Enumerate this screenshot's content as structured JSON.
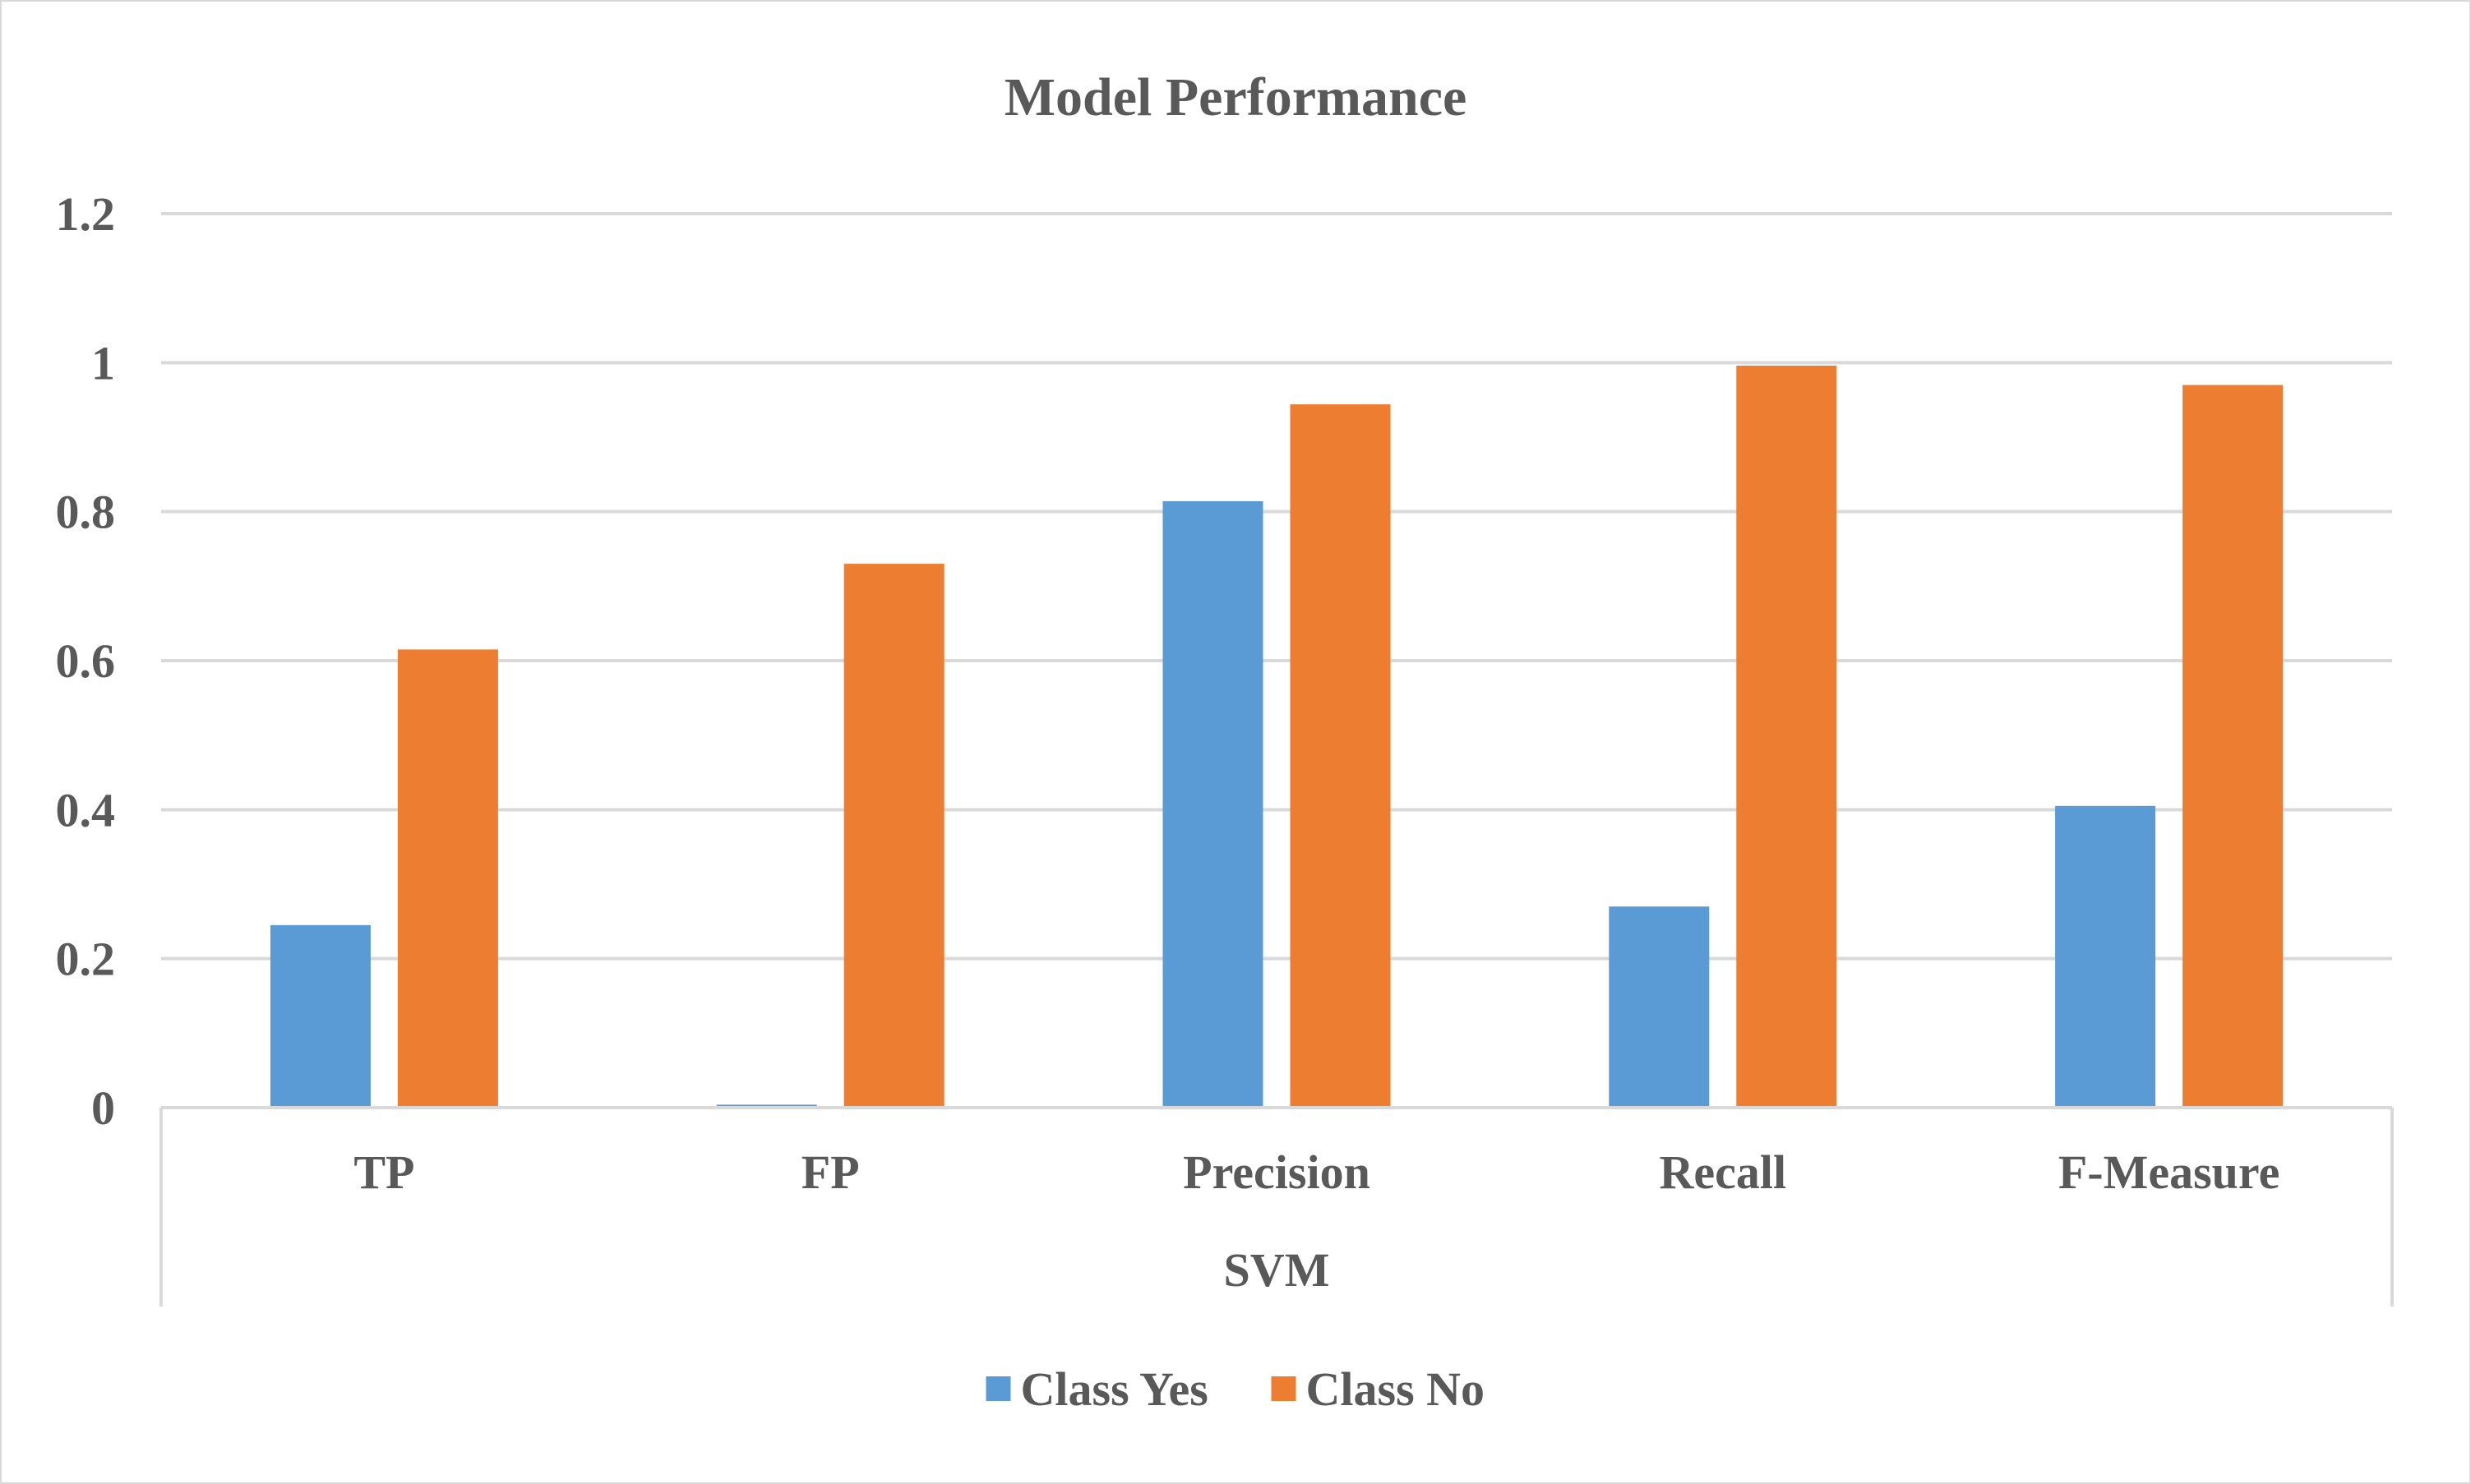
{
  "chart_data": {
    "type": "bar",
    "title": "Model Performance",
    "categories": [
      "TP",
      "FP",
      "Precision",
      "Recall",
      "F-Measure"
    ],
    "group_label": "SVM",
    "series": [
      {
        "name": "Class Yes",
        "color": "#5b9bd5",
        "values": [
          0.245,
          0.004,
          0.814,
          0.27,
          0.405
        ]
      },
      {
        "name": "Class No",
        "color": "#ed7d31",
        "values": [
          0.615,
          0.73,
          0.944,
          0.996,
          0.97
        ]
      }
    ],
    "y_ticks": [
      "0",
      "0.2",
      "0.4",
      "0.6",
      "0.8",
      "1",
      "1.2"
    ],
    "ylim": [
      0,
      1.2
    ],
    "grid": true,
    "legend_position": "bottom",
    "xlabel": "",
    "ylabel": ""
  },
  "colors": {
    "grid": "#d9d9d9",
    "text": "#595959"
  }
}
